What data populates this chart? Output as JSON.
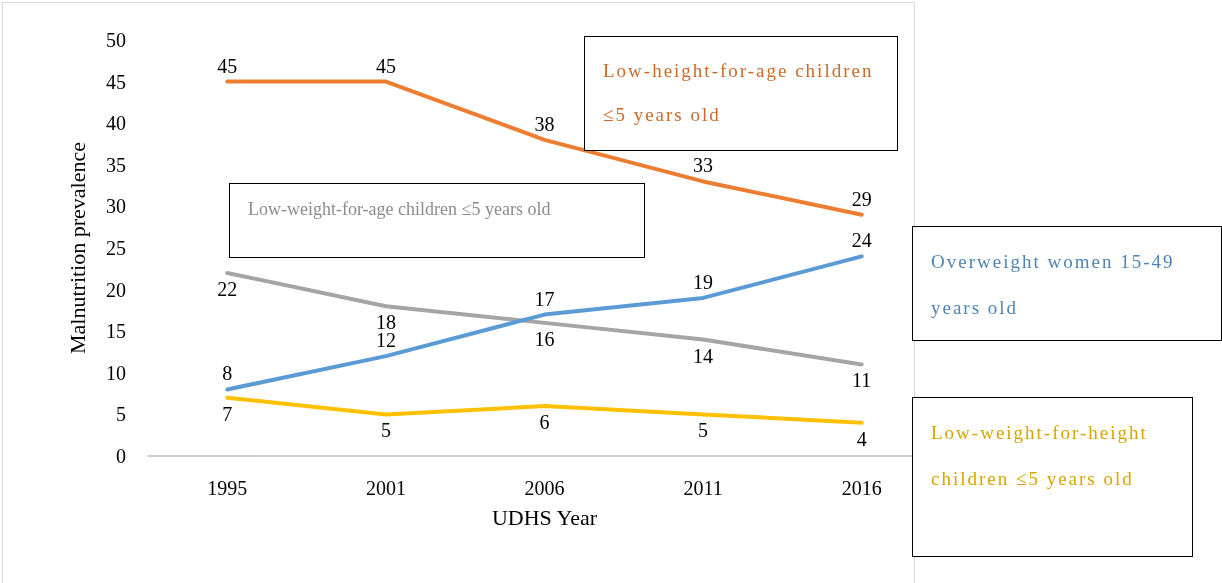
{
  "chart_data": {
    "type": "line",
    "xlabel": "UDHS Year",
    "ylabel": "Malnutrition prevalence",
    "categories": [
      "1995",
      "2001",
      "2006",
      "2011",
      "2016"
    ],
    "series": [
      {
        "name": "Low-height-for-age children ≤5 years old",
        "color": "#ed7d31",
        "values": [
          45,
          45,
          38,
          33,
          29
        ]
      },
      {
        "name": "Low-weight-for-age children ≤5 years old",
        "color": "#a5a5a5",
        "values": [
          22,
          18,
          16,
          14,
          11
        ]
      },
      {
        "name": "Overweight women 15-49 years old",
        "color": "#5b9bd5",
        "values": [
          8,
          12,
          17,
          19,
          24
        ]
      },
      {
        "name": "Low-weight-for-height children ≤5 years old",
        "color": "#ffc000",
        "values": [
          7,
          5,
          6,
          5,
          4
        ]
      }
    ],
    "ylim": [
      0,
      50
    ],
    "yticks": [
      0,
      5,
      10,
      15,
      20,
      25,
      30,
      35,
      40,
      45,
      50
    ],
    "data_labels": true
  }
}
